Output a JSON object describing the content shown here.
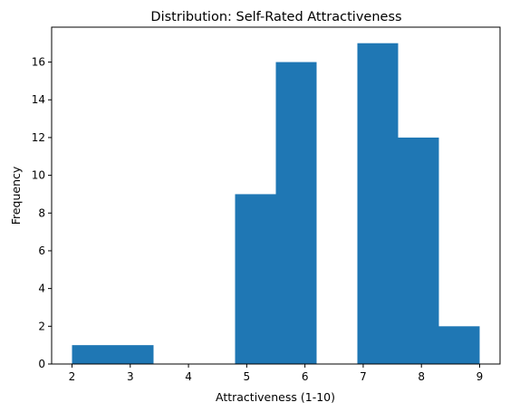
{
  "chart_data": {
    "type": "bar",
    "subtype": "histogram",
    "title": "Distribution: Self-Rated Attractiveness",
    "xlabel": "Attractiveness (1-10)",
    "ylabel": "Frequency",
    "bin_edges": [
      2.0,
      2.7,
      3.4,
      4.1,
      4.8,
      5.5,
      6.2,
      6.9,
      7.6,
      8.3,
      9.0
    ],
    "counts": [
      1,
      1,
      0,
      0,
      9,
      16,
      0,
      17,
      12,
      2
    ],
    "xlim": [
      1.65,
      9.35
    ],
    "ylim": [
      0,
      17.85
    ],
    "xticks": [
      2,
      3,
      4,
      5,
      6,
      7,
      8,
      9
    ],
    "yticks": [
      0,
      2,
      4,
      6,
      8,
      10,
      12,
      14,
      16
    ],
    "grid": false,
    "colors": {
      "bar": "#1f77b4"
    }
  }
}
